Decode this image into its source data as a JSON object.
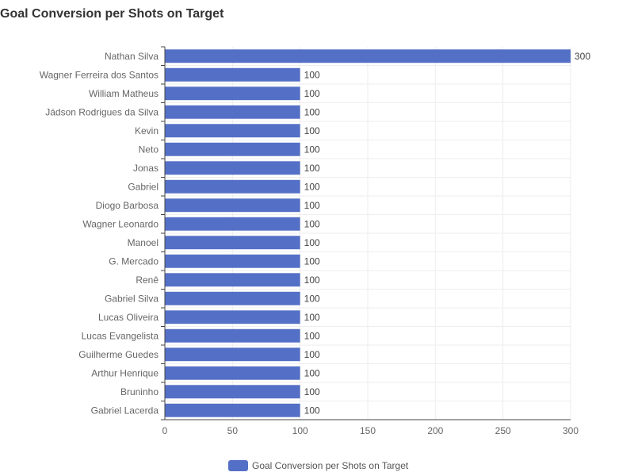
{
  "chart_data": {
    "type": "bar",
    "orientation": "horizontal",
    "title": "Goal Conversion per Shots on Target",
    "xlabel": "",
    "ylabel": "",
    "xlim": [
      0,
      300
    ],
    "x_ticks": [
      0,
      50,
      100,
      150,
      200,
      250,
      300
    ],
    "grid": true,
    "legend_position": "bottom",
    "colors": {
      "bar": "#5470c6",
      "grid": "#eeeeee",
      "axis": "#444444"
    },
    "categories": [
      "Nathan Silva",
      "Wagner Ferreira dos Santos",
      "William Matheus",
      "Jádson Rodrigues da Silva",
      "Kevin",
      "Neto",
      "Jonas",
      "Gabriel",
      "Diogo Barbosa",
      "Wagner Leonardo",
      "Manoel",
      "G. Mercado",
      "Renê",
      "Gabriel Silva",
      "Lucas Oliveira",
      "Lucas Evangelista",
      "Guilherme Guedes",
      "Arthur Henrique",
      "Bruninho",
      "Gabriel Lacerda"
    ],
    "series": [
      {
        "name": "Goal Conversion per Shots on Target",
        "values": [
          300,
          100,
          100,
          100,
          100,
          100,
          100,
          100,
          100,
          100,
          100,
          100,
          100,
          100,
          100,
          100,
          100,
          100,
          100,
          100
        ]
      }
    ]
  }
}
